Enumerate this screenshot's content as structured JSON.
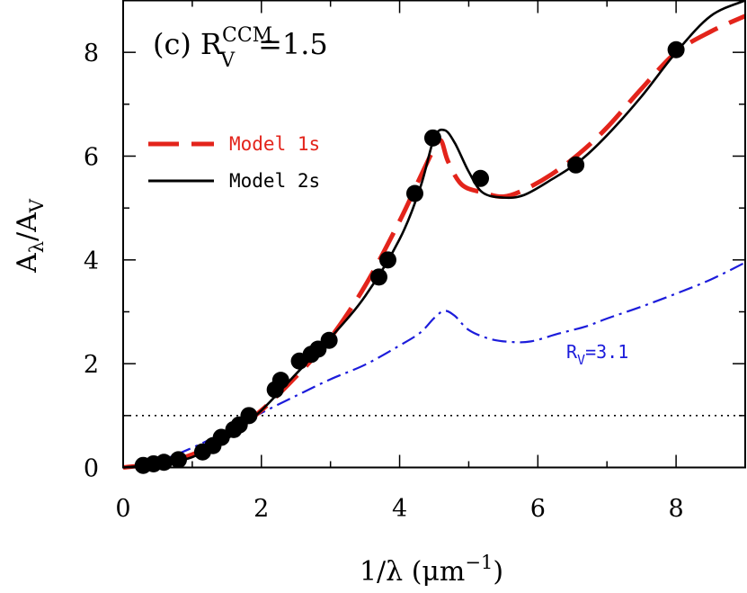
{
  "chart_data": {
    "type": "line",
    "panel_label": "(c)",
    "title_main": "R",
    "title_super": "CCM",
    "title_sub": "V",
    "title_value": "=1.5",
    "xlabel_main": "1/λ (μm",
    "xlabel_sup": "−1",
    "xlabel_close": ")",
    "ylabel_num": "A",
    "ylabel_num_sub": "λ",
    "ylabel_sep": "/A",
    "ylabel_den_sub": "V",
    "xlim": [
      0,
      9
    ],
    "ylim": [
      0,
      9
    ],
    "xticks": [
      0,
      2,
      4,
      6,
      8
    ],
    "yticks": [
      0,
      2,
      4,
      6,
      8
    ],
    "xtick_labels": [
      "0",
      "2",
      "4",
      "6",
      "8"
    ],
    "ytick_labels": [
      "0",
      "2",
      "4",
      "6",
      "8"
    ],
    "reference_line_y": 1.0,
    "series": [
      {
        "name": "Model 1s",
        "style": "dashed",
        "color": "#e3241b",
        "x": [
          0,
          0.5,
          1.0,
          1.5,
          2.0,
          2.5,
          3.0,
          3.5,
          4.0,
          4.3,
          4.5,
          4.6,
          4.7,
          4.9,
          5.2,
          5.5,
          5.8,
          6.2,
          6.6,
          7.0,
          7.5,
          8.0,
          8.5,
          9.0
        ],
        "y": [
          0.0,
          0.08,
          0.25,
          0.6,
          1.1,
          1.75,
          2.5,
          3.5,
          4.75,
          5.6,
          6.15,
          6.3,
          5.9,
          5.45,
          5.3,
          5.22,
          5.35,
          5.65,
          6.05,
          6.55,
          7.3,
          8.0,
          8.4,
          8.7
        ]
      },
      {
        "name": "Model 2s",
        "style": "solid",
        "color": "#000000",
        "x": [
          0,
          0.5,
          1.0,
          1.5,
          2.0,
          2.5,
          3.0,
          3.5,
          4.0,
          4.3,
          4.5,
          4.65,
          4.8,
          5.0,
          5.2,
          5.5,
          5.8,
          6.2,
          6.6,
          7.0,
          7.5,
          8.0,
          8.5,
          9.0
        ],
        "y": [
          0.0,
          0.06,
          0.2,
          0.55,
          1.1,
          1.8,
          2.5,
          3.3,
          4.4,
          5.4,
          6.35,
          6.5,
          6.25,
          5.7,
          5.3,
          5.2,
          5.25,
          5.55,
          5.9,
          6.4,
          7.15,
          8.0,
          8.7,
          9.0
        ]
      },
      {
        "name": "R_V=3.1",
        "label_main": "R",
        "label_sub": "V",
        "label_rest": "=3.1",
        "style": "dashdot",
        "color": "#1c1cdb",
        "x": [
          0,
          0.5,
          1.0,
          1.5,
          2.0,
          2.5,
          3.0,
          3.5,
          4.0,
          4.3,
          4.5,
          4.65,
          4.8,
          5.0,
          5.3,
          5.6,
          5.9,
          6.3,
          6.7,
          7.0,
          7.5,
          8.0,
          8.5,
          9.0
        ],
        "y": [
          0.0,
          0.12,
          0.38,
          0.7,
          1.05,
          1.38,
          1.7,
          1.98,
          2.35,
          2.6,
          2.88,
          3.02,
          2.92,
          2.65,
          2.48,
          2.42,
          2.43,
          2.58,
          2.72,
          2.87,
          3.1,
          3.35,
          3.62,
          3.95
        ]
      }
    ],
    "observations": {
      "name": "observed points",
      "color": "#000000",
      "x": [
        0.29,
        0.44,
        0.59,
        0.8,
        1.15,
        1.3,
        1.42,
        1.6,
        1.68,
        1.82,
        2.2,
        2.28,
        2.55,
        2.72,
        2.82,
        2.98,
        3.7,
        3.83,
        4.22,
        4.48,
        5.17,
        6.55,
        8.0
      ],
      "y": [
        0.04,
        0.07,
        0.1,
        0.15,
        0.3,
        0.42,
        0.58,
        0.73,
        0.82,
        1.0,
        1.5,
        1.68,
        2.05,
        2.18,
        2.28,
        2.45,
        3.67,
        4.0,
        5.28,
        6.35,
        5.57,
        5.83,
        8.05
      ]
    }
  }
}
